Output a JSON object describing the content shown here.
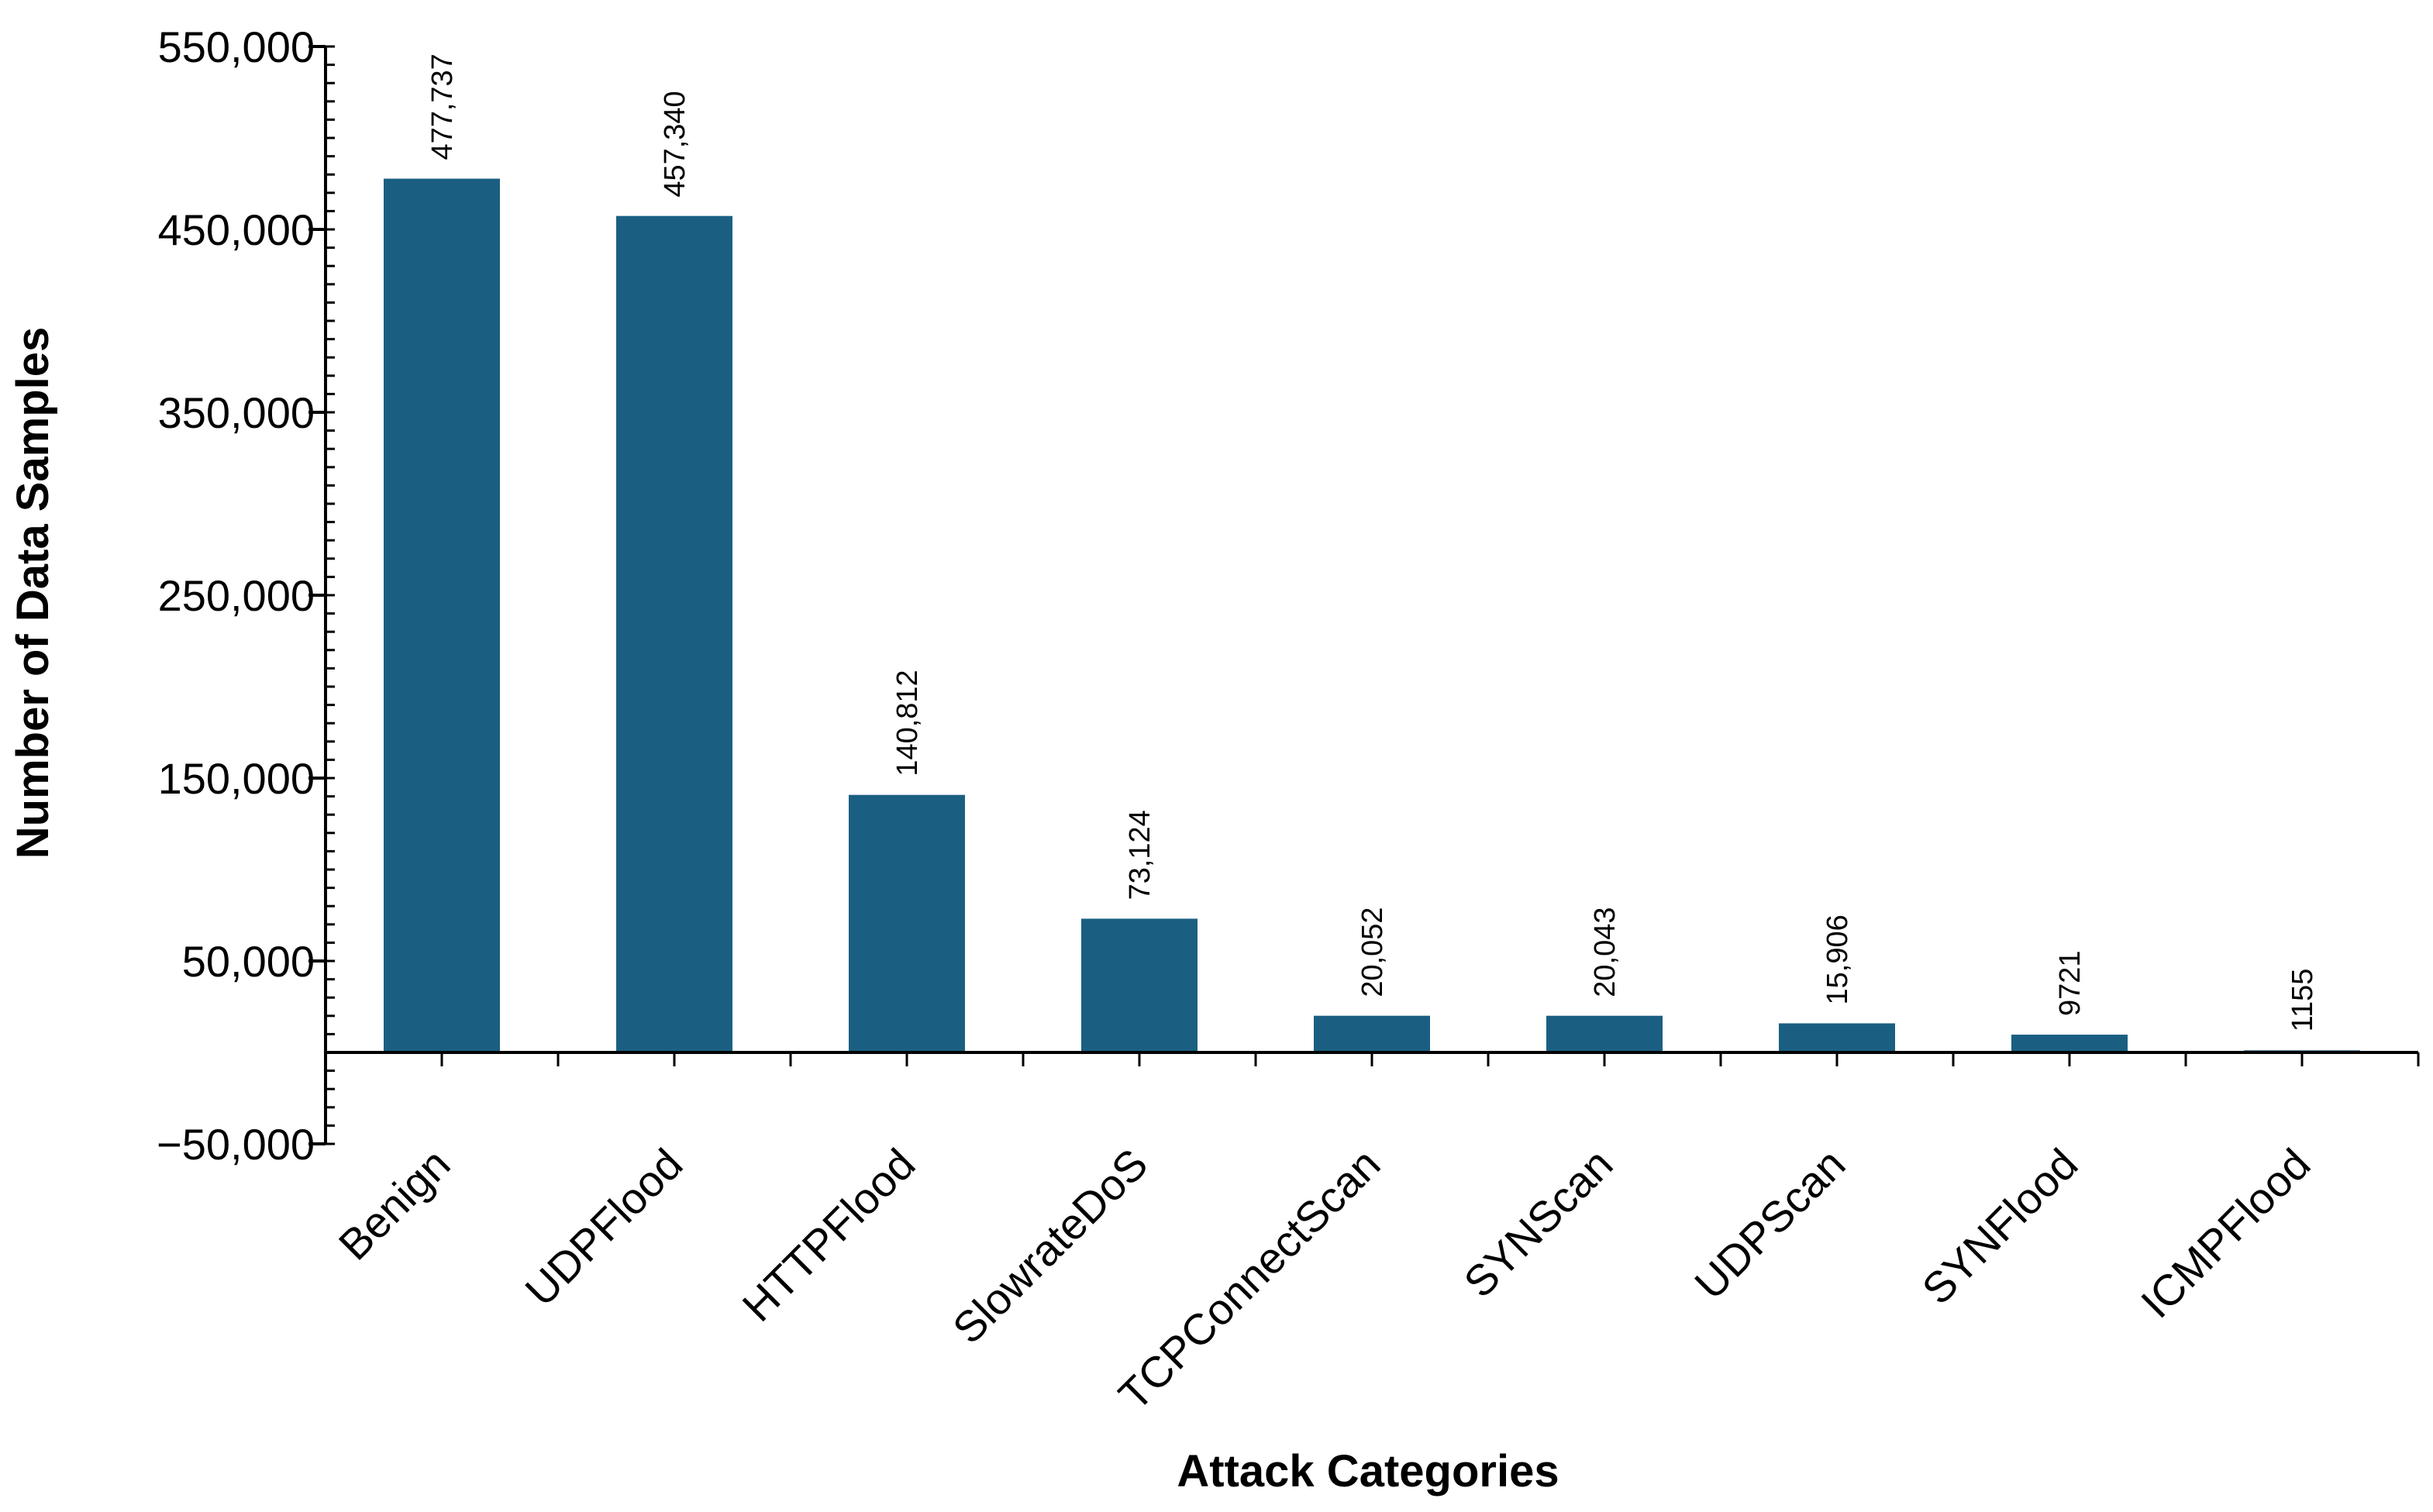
{
  "chart_data": {
    "type": "bar",
    "title": "",
    "xlabel": "Attack Categories",
    "ylabel": "Number of Data Samples",
    "categories": [
      "Benign",
      "UDPFlood",
      "HTTPFlood",
      "SlowrateDoS",
      "TCPConnectScan",
      "SYNScan",
      "UDPScan",
      "SYNFlood",
      "ICMPFlood"
    ],
    "values": [
      477737,
      457340,
      140812,
      73124,
      20052,
      20043,
      15906,
      9721,
      1155
    ],
    "data_labels": [
      "477,737",
      "457,340",
      "140,812",
      "73,124",
      "20,052",
      "20,043",
      "15,906",
      "9721",
      "1155"
    ],
    "ylim": [
      -50000,
      550000
    ],
    "yticks": [
      -50000,
      50000,
      150000,
      250000,
      350000,
      450000,
      550000
    ],
    "ytick_labels": [
      "−50,000",
      "50,000",
      "150,000",
      "250,000",
      "350,000",
      "450,000",
      "550,000"
    ],
    "bar_color": "#1a5f82",
    "grid": false,
    "legend": "none"
  }
}
